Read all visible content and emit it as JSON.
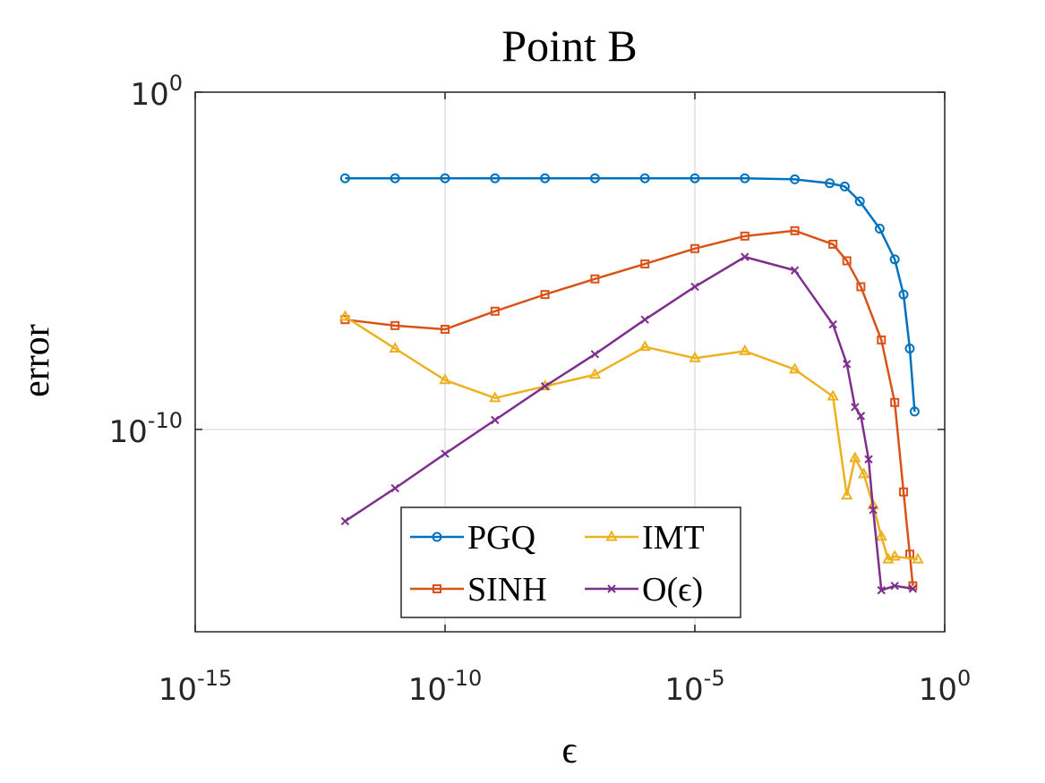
{
  "chart_data": {
    "type": "line",
    "title": "Point B",
    "xlabel": "ϵ",
    "ylabel": "error",
    "xscale": "log",
    "yscale": "log",
    "grid": true,
    "legend": "lower center",
    "legend_columns": 2,
    "xlim": [
      1e-15,
      1
    ],
    "ylim": [
      1e-16,
      1
    ],
    "xticks": [
      {
        "value": 1e-15,
        "label": "10-15"
      },
      {
        "value": 1e-10,
        "label": "10-10"
      },
      {
        "value": 1e-05,
        "label": "10-5"
      },
      {
        "value": 1,
        "label": "100"
      }
    ],
    "yticks": [
      {
        "value": 1e-10,
        "label": "10-10"
      },
      {
        "value": 1,
        "label": "100"
      }
    ],
    "series": [
      {
        "name": "PGQ",
        "color": "#0072BD",
        "marker": "circle",
        "x": [
          1e-12,
          1e-11,
          1e-10,
          1e-09,
          1e-08,
          1e-07,
          1e-06,
          1e-05,
          0.0001,
          0.001,
          0.005,
          0.01,
          0.02,
          0.05,
          0.1,
          0.15,
          0.2,
          0.25
        ],
        "values": [
          0.0028,
          0.0028,
          0.0028,
          0.0028,
          0.0028,
          0.0028,
          0.0028,
          0.0028,
          0.0028,
          0.0026,
          0.002,
          0.0016,
          0.00058,
          9e-05,
          1.1e-05,
          1e-06,
          2.5e-08,
          3.4e-10
        ]
      },
      {
        "name": "SINH",
        "color": "#D95319",
        "marker": "square",
        "x": [
          1e-12,
          1e-11,
          1e-10,
          1e-09,
          1e-08,
          1e-07,
          1e-06,
          1e-05,
          0.0001,
          0.001,
          0.0058,
          0.011,
          0.021,
          0.054,
          0.1,
          0.15,
          0.2,
          0.23
        ],
        "values": [
          1.8e-07,
          1.2e-07,
          9.3e-08,
          3.2e-07,
          1e-06,
          2.9e-06,
          8.1e-06,
          2.3e-05,
          5.4e-05,
          7.8e-05,
          3.1e-05,
          1e-05,
          1.7e-06,
          4.5e-08,
          6.3e-10,
          1.4e-12,
          2e-14,
          2.3e-15
        ]
      },
      {
        "name": "IMT",
        "color": "#EDB120",
        "marker": "triangle",
        "x": [
          1e-12,
          1e-11,
          1e-10,
          1e-09,
          1e-08,
          1e-07,
          1e-06,
          1e-05,
          0.0001,
          0.001,
          0.0058,
          0.011,
          0.016,
          0.024,
          0.037,
          0.054,
          0.074,
          0.1,
          0.29
        ],
        "values": [
          2.2e-07,
          2.5e-08,
          2.9e-09,
          8.5e-10,
          1.9e-09,
          4.2e-09,
          2.8e-08,
          1.3e-08,
          2.1e-08,
          6e-09,
          9.5e-10,
          1.1e-12,
          1.4e-11,
          4.7e-12,
          5.6e-13,
          6.6e-14,
          1.4e-14,
          1.7e-14,
          1.4e-14
        ]
      },
      {
        "name": "O(ϵ)",
        "color": "#7E2F8E",
        "marker": "x",
        "x": [
          1e-12,
          1e-11,
          1e-10,
          1e-09,
          1e-08,
          1e-07,
          1e-06,
          1e-05,
          0.0001,
          0.001,
          0.0058,
          0.011,
          0.016,
          0.021,
          0.03,
          0.037,
          0.054,
          0.1,
          0.23
        ],
        "values": [
          1.9e-13,
          1.8e-12,
          1.9e-11,
          1.9e-10,
          1.9e-09,
          1.7e-08,
          1.8e-07,
          1.7e-06,
          1.3e-05,
          5.2e-06,
          1.3e-07,
          8.7e-09,
          4.6e-10,
          2.5e-10,
          1.3e-11,
          4.1e-13,
          1.7e-15,
          2.3e-15,
          1.9e-15
        ]
      }
    ]
  }
}
